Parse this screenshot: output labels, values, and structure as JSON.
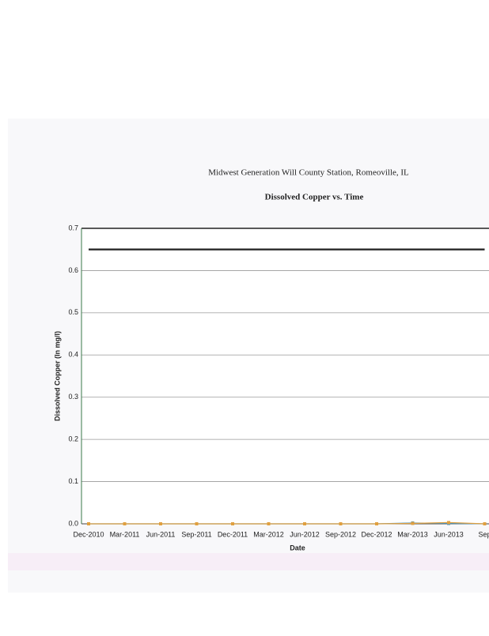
{
  "chart_data": {
    "type": "line",
    "title": "Midwest Generation Will County Station, Romeoville, IL",
    "subtitle": "Dissolved Copper vs. Time",
    "y_label": "Dissolved Copper (In mg/l)",
    "x_label": "Date",
    "categories": [
      "Dec-2010",
      "Mar-2011",
      "Jun-2011",
      "Sep-2011",
      "Dec-2011",
      "Mar-2012",
      "Jun-2012",
      "Sep-2012",
      "Dec-2012",
      "Mar-2013",
      "Jun-2013",
      "Sep"
    ],
    "series": [
      {
        "color": "#333333",
        "values": [
          0.65,
          0.65,
          0.65,
          0.65,
          0.65,
          0.65,
          0.65,
          0.65,
          0.65,
          0.65,
          0.65,
          0.65
        ],
        "marker": false
      },
      {
        "color": "#3a8fc4",
        "values": [
          0,
          0,
          0,
          0,
          0,
          0,
          0,
          0,
          0,
          0.002,
          0.001,
          0
        ],
        "marker": true
      },
      {
        "color": "#e0a040",
        "values": [
          0,
          0,
          0,
          0,
          0,
          0,
          0,
          0,
          0,
          0.001,
          0.003,
          0
        ],
        "marker": true
      }
    ],
    "ylim": [
      0,
      0.7
    ],
    "yticks": [
      {
        "value": 0,
        "label": "0.0"
      },
      0.1,
      0.2,
      0.3,
      0.4,
      0.5,
      0.6,
      0.7
    ],
    "grid": true
  }
}
